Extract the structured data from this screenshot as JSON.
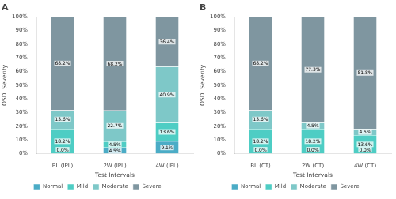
{
  "chart_data": [
    {
      "type": "bar",
      "title": "A",
      "categories": [
        "BL (IPL)",
        "2W (IPL)",
        "4W (IPL)"
      ],
      "xlabel": "Test Intervals",
      "ylabel": "OSDI Severity",
      "series": [
        {
          "name": "Normal",
          "color": "#4bacc6",
          "values": [
            0.0,
            4.5,
            9.1
          ],
          "value_labels": [
            "0.0%",
            "4.5%",
            "9.1%"
          ]
        },
        {
          "name": "Mild",
          "color": "#4ecdc4",
          "values": [
            18.2,
            4.5,
            13.6
          ],
          "value_labels": [
            "18.2%",
            "4.5%",
            "13.6%"
          ]
        },
        {
          "name": "Moderate",
          "color": "#7ec8c8",
          "values": [
            13.6,
            22.7,
            40.9
          ],
          "value_labels": [
            "13.6%",
            "22.7%",
            "40.9%"
          ]
        },
        {
          "name": "Severe",
          "color": "#7f96a0",
          "values": [
            68.2,
            68.2,
            36.4
          ],
          "value_labels": [
            "68.2%",
            "68.2%",
            "36.4%"
          ]
        }
      ],
      "ylim": [
        0,
        100
      ],
      "yticks": [
        {
          "value": 0,
          "label": "0%"
        },
        {
          "value": 10,
          "label": "10%"
        },
        {
          "value": 20,
          "label": "20%"
        },
        {
          "value": 30,
          "label": "30%"
        },
        {
          "value": 40,
          "label": "40%"
        },
        {
          "value": 50,
          "label": "50%"
        },
        {
          "value": 60,
          "label": "60%"
        },
        {
          "value": 70,
          "label": "70%"
        },
        {
          "value": 80,
          "label": "80%"
        },
        {
          "value": 90,
          "label": "90%"
        },
        {
          "value": 100,
          "label": "100%"
        }
      ],
      "stacked": true,
      "data_labels": true,
      "grid": false,
      "legend": "bottom"
    },
    {
      "type": "bar",
      "title": "B",
      "categories": [
        "BL (CT)",
        "2W (CT)",
        "4W (CT)"
      ],
      "xlabel": "Test Intervals",
      "ylabel": "OSDI Severity",
      "series": [
        {
          "name": "Normal",
          "color": "#4bacc6",
          "values": [
            0.0,
            0.0,
            0.0
          ],
          "value_labels": [
            "0.0%",
            "0.0%",
            "0.0%"
          ]
        },
        {
          "name": "Mild",
          "color": "#4ecdc4",
          "values": [
            18.2,
            18.2,
            13.6
          ],
          "value_labels": [
            "18.2%",
            "18.2%",
            "13.6%"
          ]
        },
        {
          "name": "Moderate",
          "color": "#7ec8c8",
          "values": [
            13.6,
            4.5,
            4.5
          ],
          "value_labels": [
            "13.6%",
            "4.5%",
            "4.5%"
          ]
        },
        {
          "name": "Severe",
          "color": "#7f96a0",
          "values": [
            68.2,
            77.3,
            81.8
          ],
          "value_labels": [
            "68.2%",
            "77.3%",
            "81.8%"
          ]
        }
      ],
      "ylim": [
        0,
        100
      ],
      "yticks": [
        {
          "value": 0,
          "label": "0%"
        },
        {
          "value": 10,
          "label": "10%"
        },
        {
          "value": 20,
          "label": "20%"
        },
        {
          "value": 30,
          "label": "30%"
        },
        {
          "value": 40,
          "label": "40%"
        },
        {
          "value": 50,
          "label": "50%"
        },
        {
          "value": 60,
          "label": "60%"
        },
        {
          "value": 70,
          "label": "70%"
        },
        {
          "value": 80,
          "label": "80%"
        },
        {
          "value": 90,
          "label": "90%"
        },
        {
          "value": 100,
          "label": "100%"
        }
      ],
      "stacked": true,
      "data_labels": true,
      "grid": false,
      "legend": "bottom"
    }
  ]
}
